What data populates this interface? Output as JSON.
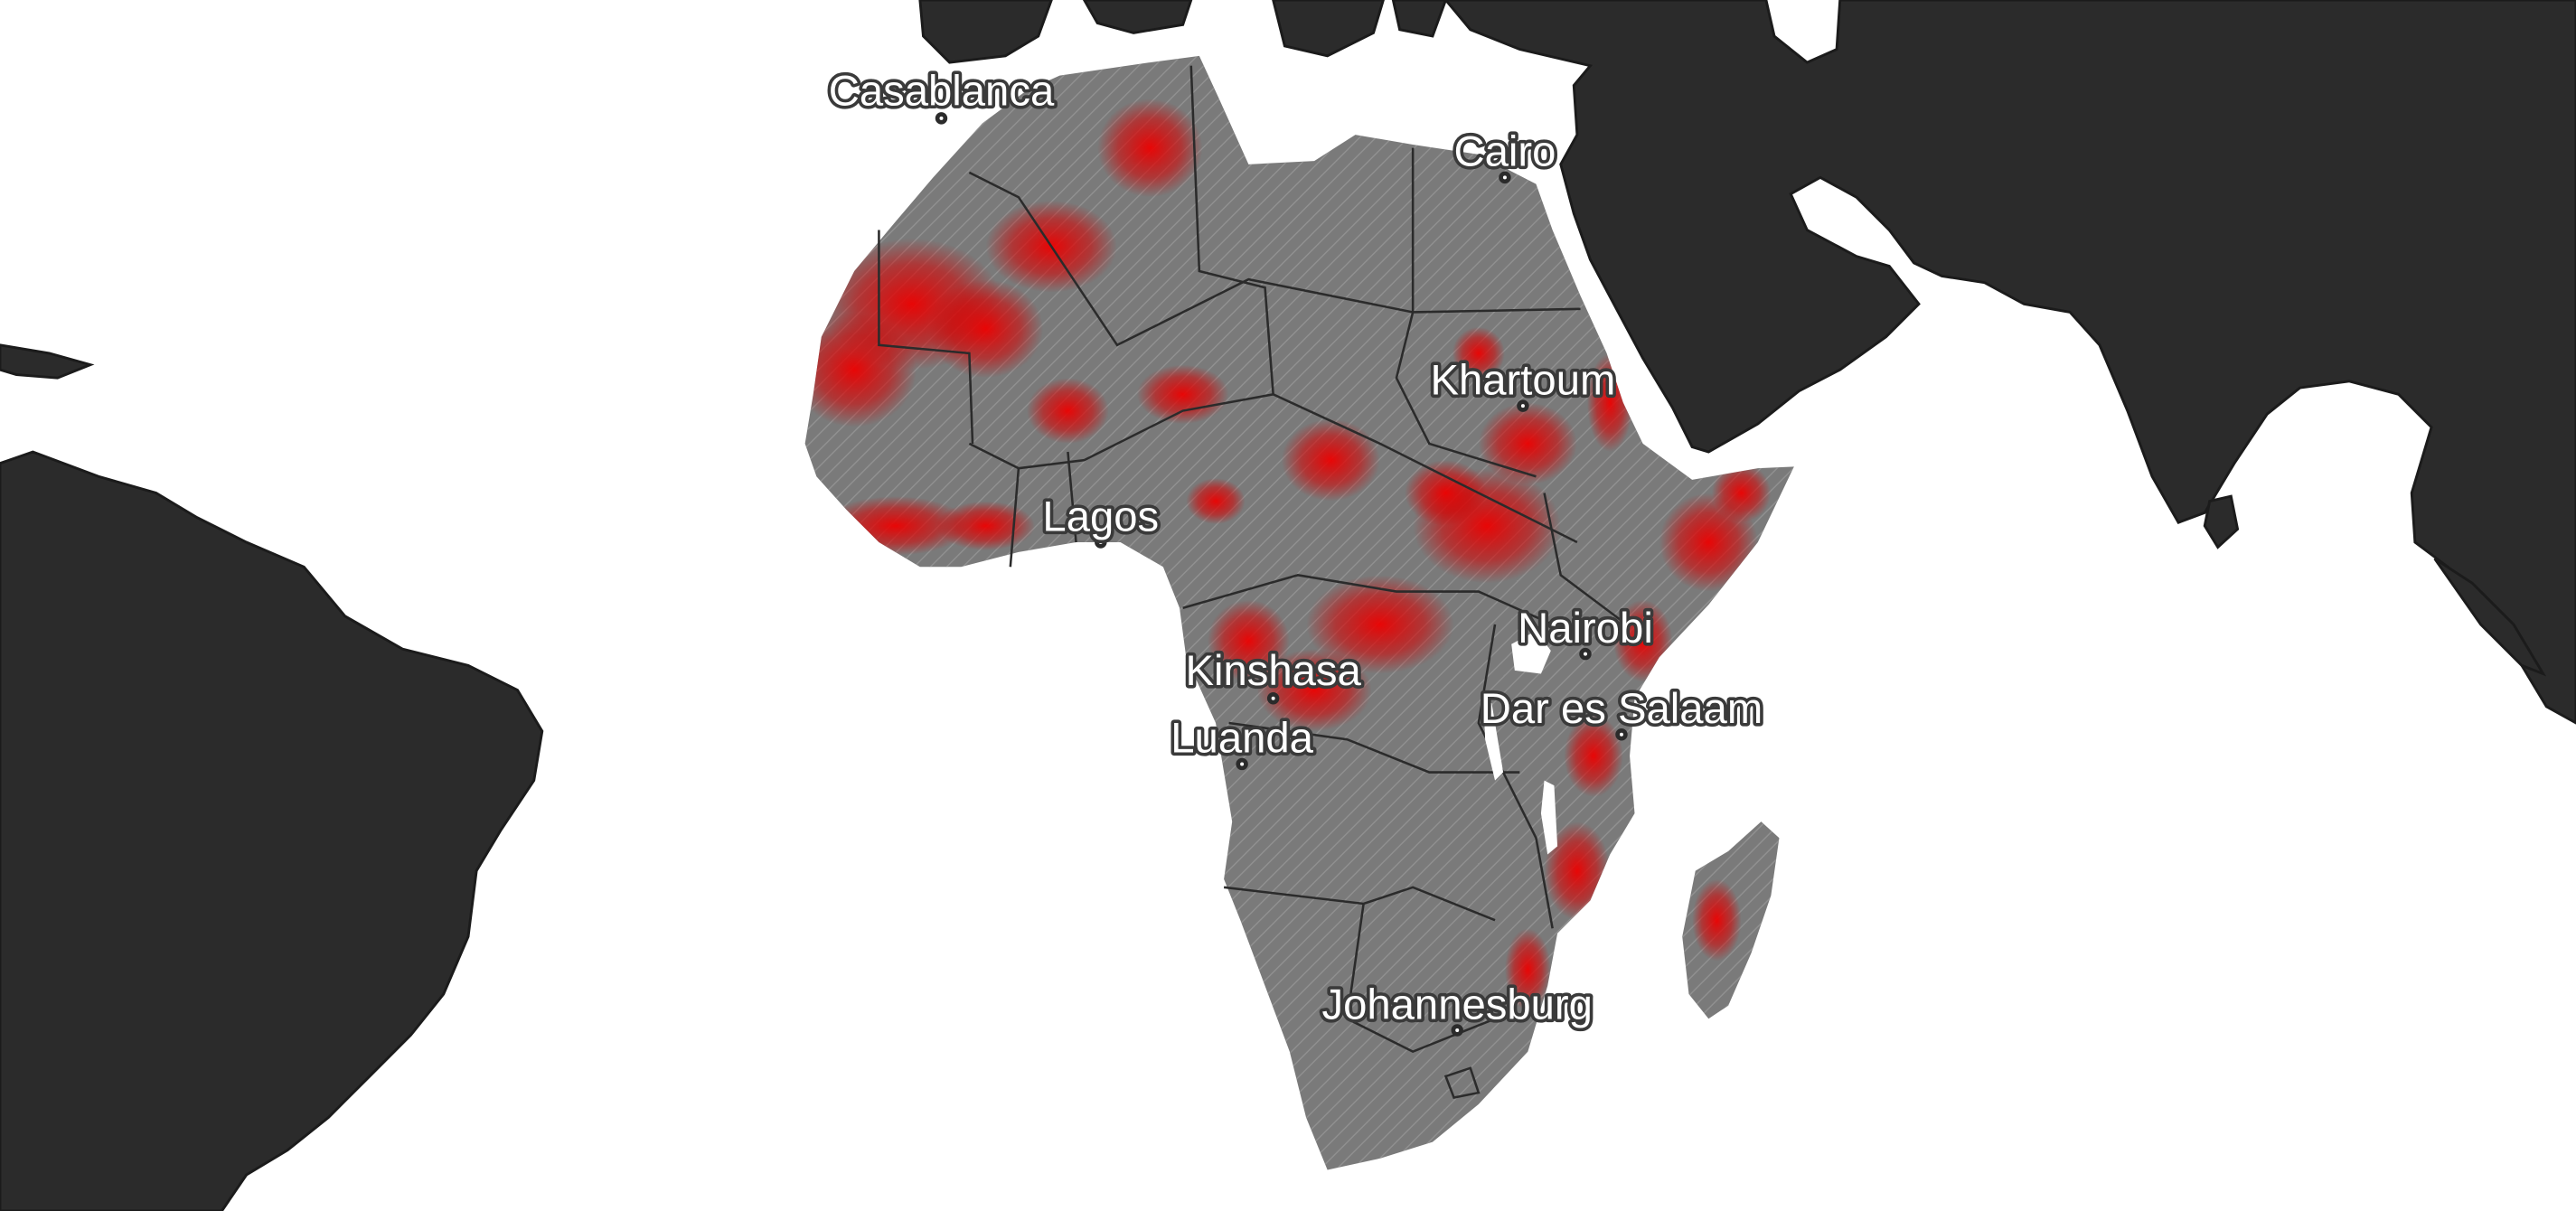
{
  "map": {
    "colors": {
      "ocean": "#ffffff",
      "other_land": "#2b2b2b",
      "africa_land": "#7a7a7a",
      "high_value": "#e00000",
      "hatch": "#9a9a9a",
      "borders": "#2b2b2b"
    },
    "layers": [
      "basemap",
      "intensity-grid",
      "hatch-overlay",
      "country-borders",
      "city-labels"
    ],
    "cities": [
      {
        "name": "Casablanca"
      },
      {
        "name": "Cairo"
      },
      {
        "name": "Khartoum"
      },
      {
        "name": "Lagos"
      },
      {
        "name": "Nairobi"
      },
      {
        "name": "Kinshasa"
      },
      {
        "name": "Dar es Salaam"
      },
      {
        "name": "Luanda"
      },
      {
        "name": "Johannesburg"
      }
    ]
  }
}
